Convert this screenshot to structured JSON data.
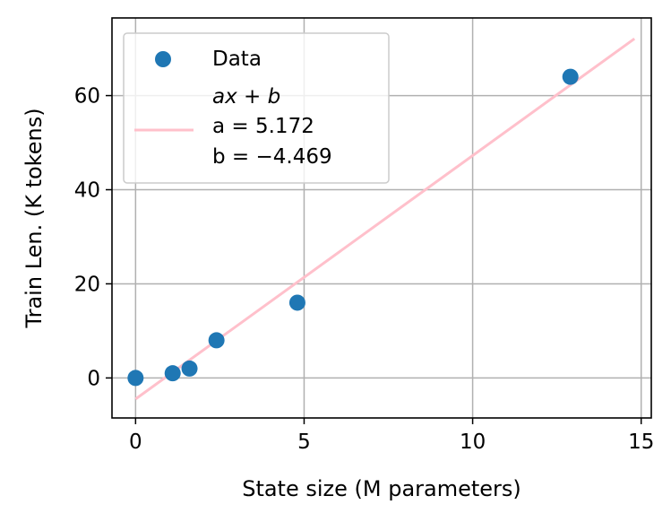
{
  "chart_data": {
    "type": "scatter",
    "xlabel": "State size (M parameters)",
    "ylabel": "Train Len. (K tokens)",
    "xlim": [
      -0.7,
      15.3
    ],
    "ylim": [
      -8.5,
      76.5
    ],
    "xticks": [
      0,
      5,
      10,
      15
    ],
    "xtick_labels": [
      "0",
      "5",
      "10",
      "15"
    ],
    "yticks": [
      0,
      20,
      40,
      60
    ],
    "ytick_labels": [
      "0",
      "20",
      "40",
      "60"
    ],
    "grid": true,
    "legend_position": "top-left",
    "series": [
      {
        "name": "Data",
        "kind": "scatter",
        "color": "#1f77b4",
        "x": [
          0.0,
          1.1,
          1.6,
          2.4,
          4.8,
          12.9
        ],
        "y": [
          0,
          1,
          2,
          8,
          16,
          64
        ]
      },
      {
        "name_lines": [
          "ax + b",
          "a = 5.172",
          "b = −4.469"
        ],
        "kind": "line",
        "color": "#ffc0cb",
        "slope": 5.172,
        "intercept": -4.469,
        "x_range": [
          0.0,
          14.8
        ]
      }
    ]
  }
}
